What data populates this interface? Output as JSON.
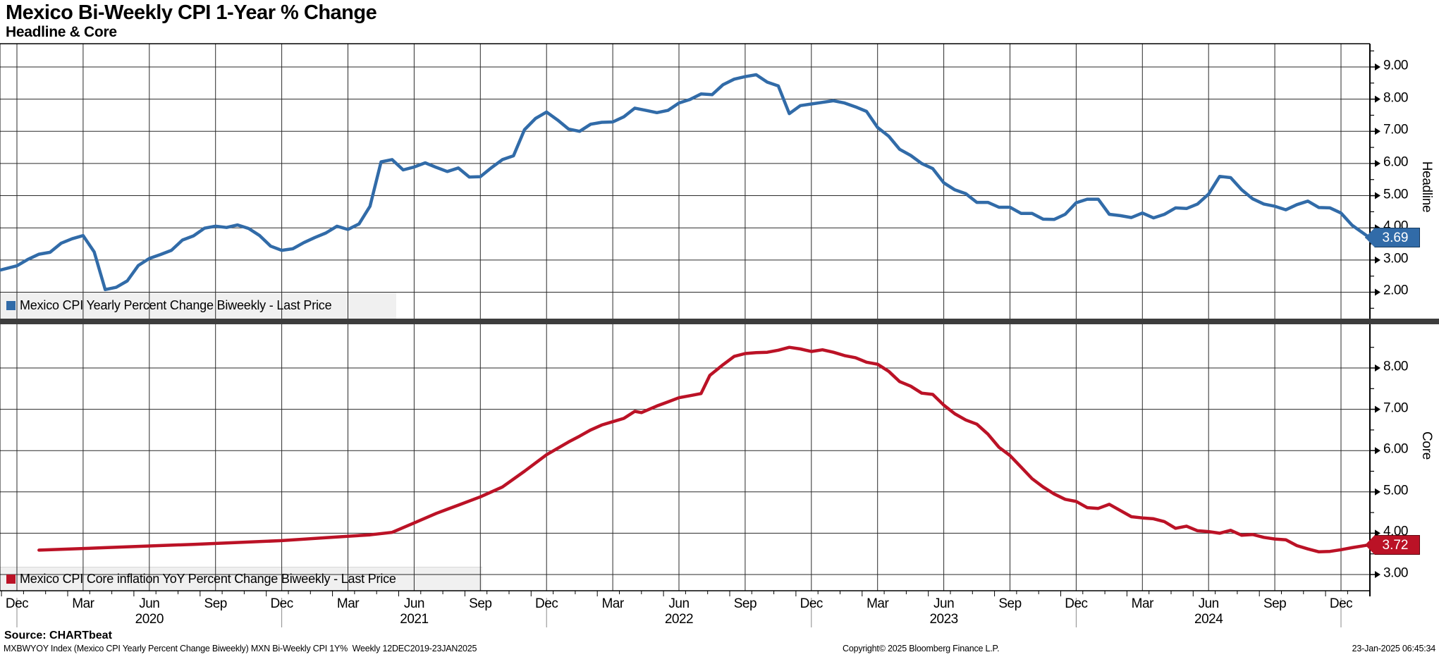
{
  "header": {
    "title": "Mexico Bi-Weekly CPI 1-Year % Change",
    "subtitle": "Headline & Core"
  },
  "colors": {
    "headline_blue": "#316ba8",
    "headline_badge_border": "#16395c",
    "core_red": "#bb1226",
    "core_badge_border": "#5f0911",
    "grid": "#2a2a2a",
    "frame": "#000000",
    "divider": "#3d3d3d",
    "legend_bg": "#f0f0f0",
    "year_separator": "#8a8a8a"
  },
  "panels": [
    {
      "name": "headline",
      "axis_title": "Headline",
      "legend_label": "Mexico CPI Yearly Percent Change Biweekly - Last Price",
      "last_price_badge": "3.69",
      "y_tick_labels": [
        "9.00",
        "8.00",
        "7.00",
        "6.00",
        "5.00",
        "4.00",
        "3.00",
        "2.00"
      ]
    },
    {
      "name": "core",
      "axis_title": "Core",
      "legend_label": "Mexico CPI Core inflation YoY Percent Change Biweekly - Last Price",
      "last_price_badge": "3.72",
      "y_tick_labels": [
        "8.00",
        "7.00",
        "6.00",
        "5.00",
        "4.00",
        "3.00"
      ]
    }
  ],
  "chart_data": [
    {
      "type": "line",
      "panel": "top",
      "title": "Headline",
      "legend": "Mexico CPI Yearly Percent Change Biweekly - Last Price",
      "ylabel": "Headline",
      "ylim": [
        1.1,
        9.7
      ],
      "yticks": [
        2,
        3,
        4,
        5,
        6,
        7,
        8,
        9
      ],
      "x_axis_note": "x = months since 12-Dec-2019; biweekly CPI YoY %, 12DEC2019-23JAN2025",
      "last_value": 3.69,
      "series": [
        {
          "name": "Mexico CPI Yearly Percent Change Biweekly",
          "color": "#316ba8",
          "points": [
            [
              -0.8,
              2.68
            ],
            [
              0,
              2.82
            ],
            [
              0.5,
              3.02
            ],
            [
              1,
              3.18
            ],
            [
              1.5,
              3.24
            ],
            [
              2,
              3.52
            ],
            [
              2.5,
              3.66
            ],
            [
              3,
              3.76
            ],
            [
              3.5,
              3.25
            ],
            [
              4,
              2.08
            ],
            [
              4.5,
              2.15
            ],
            [
              5,
              2.35
            ],
            [
              5.5,
              2.83
            ],
            [
              6,
              3.05
            ],
            [
              6.5,
              3.17
            ],
            [
              7,
              3.3
            ],
            [
              7.5,
              3.62
            ],
            [
              8,
              3.75
            ],
            [
              8.5,
              3.99
            ],
            [
              9,
              4.05
            ],
            [
              9.5,
              4.01
            ],
            [
              10,
              4.09
            ],
            [
              10.5,
              3.98
            ],
            [
              11,
              3.76
            ],
            [
              11.5,
              3.43
            ],
            [
              12,
              3.3
            ],
            [
              12.5,
              3.35
            ],
            [
              13,
              3.54
            ],
            [
              13.5,
              3.7
            ],
            [
              14,
              3.84
            ],
            [
              14.5,
              4.05
            ],
            [
              15,
              3.95
            ],
            [
              15.5,
              4.12
            ],
            [
              16,
              4.67
            ],
            [
              16.5,
              6.05
            ],
            [
              17,
              6.12
            ],
            [
              17.5,
              5.8
            ],
            [
              18,
              5.89
            ],
            [
              18.5,
              6.02
            ],
            [
              19,
              5.88
            ],
            [
              19.5,
              5.75
            ],
            [
              20,
              5.86
            ],
            [
              20.5,
              5.58
            ],
            [
              21,
              5.59
            ],
            [
              21.5,
              5.87
            ],
            [
              22,
              6.12
            ],
            [
              22.5,
              6.24
            ],
            [
              23,
              7.05
            ],
            [
              23.5,
              7.4
            ],
            [
              24,
              7.6
            ],
            [
              24.5,
              7.35
            ],
            [
              25,
              7.07
            ],
            [
              25.5,
              7.0
            ],
            [
              26,
              7.22
            ],
            [
              26.5,
              7.28
            ],
            [
              27,
              7.29
            ],
            [
              27.5,
              7.45
            ],
            [
              28,
              7.72
            ],
            [
              28.5,
              7.65
            ],
            [
              29,
              7.58
            ],
            [
              29.5,
              7.65
            ],
            [
              30,
              7.88
            ],
            [
              30.5,
              7.99
            ],
            [
              31,
              8.16
            ],
            [
              31.5,
              8.14
            ],
            [
              32,
              8.45
            ],
            [
              32.5,
              8.62
            ],
            [
              33,
              8.7
            ],
            [
              33.5,
              8.76
            ],
            [
              34,
              8.53
            ],
            [
              34.5,
              8.41
            ],
            [
              35,
              7.55
            ],
            [
              35.5,
              7.8
            ],
            [
              36,
              7.85
            ],
            [
              36.5,
              7.9
            ],
            [
              37,
              7.95
            ],
            [
              37.5,
              7.88
            ],
            [
              38,
              7.76
            ],
            [
              38.5,
              7.62
            ],
            [
              39,
              7.12
            ],
            [
              39.5,
              6.85
            ],
            [
              40,
              6.44
            ],
            [
              40.5,
              6.25
            ],
            [
              41,
              6.0
            ],
            [
              41.5,
              5.84
            ],
            [
              42,
              5.4
            ],
            [
              42.5,
              5.18
            ],
            [
              43,
              5.06
            ],
            [
              43.5,
              4.79
            ],
            [
              44,
              4.79
            ],
            [
              44.5,
              4.64
            ],
            [
              45,
              4.64
            ],
            [
              45.5,
              4.45
            ],
            [
              46,
              4.45
            ],
            [
              46.5,
              4.27
            ],
            [
              47,
              4.26
            ],
            [
              47.5,
              4.42
            ],
            [
              48,
              4.78
            ],
            [
              48.5,
              4.89
            ],
            [
              49,
              4.89
            ],
            [
              49.5,
              4.42
            ],
            [
              50,
              4.38
            ],
            [
              50.5,
              4.32
            ],
            [
              51,
              4.46
            ],
            [
              51.5,
              4.31
            ],
            [
              52,
              4.42
            ],
            [
              52.5,
              4.62
            ],
            [
              53,
              4.6
            ],
            [
              53.5,
              4.74
            ],
            [
              54,
              5.05
            ],
            [
              54.5,
              5.6
            ],
            [
              55,
              5.56
            ],
            [
              55.5,
              5.18
            ],
            [
              56,
              4.9
            ],
            [
              56.5,
              4.74
            ],
            [
              57,
              4.67
            ],
            [
              57.5,
              4.56
            ],
            [
              58,
              4.72
            ],
            [
              58.5,
              4.83
            ],
            [
              59,
              4.63
            ],
            [
              59.5,
              4.62
            ],
            [
              60,
              4.46
            ],
            [
              60.5,
              4.08
            ],
            [
              61.3,
              3.69
            ]
          ]
        }
      ]
    },
    {
      "type": "line",
      "panel": "bottom",
      "title": "Core",
      "legend": "Mexico CPI Core inflation YoY Percent Change Biweekly - Last Price",
      "ylabel": "Core",
      "ylim": [
        2.6,
        9.05
      ],
      "yticks": [
        3,
        4,
        5,
        6,
        7,
        8
      ],
      "x_axis_note": "x = months since 12-Dec-2019; biweekly core CPI YoY %, 12DEC2019-23JAN2025",
      "last_value": 3.72,
      "series": [
        {
          "name": "Mexico CPI Core inflation YoY Percent Change Biweekly",
          "color": "#bb1226",
          "points": [
            [
              1,
              3.59
            ],
            [
              4,
              3.65
            ],
            [
              8,
              3.73
            ],
            [
              12,
              3.82
            ],
            [
              14,
              3.89
            ],
            [
              16,
              3.96
            ],
            [
              17,
              4.02
            ],
            [
              18,
              4.25
            ],
            [
              19,
              4.48
            ],
            [
              20,
              4.68
            ],
            [
              21,
              4.88
            ],
            [
              22,
              5.12
            ],
            [
              23,
              5.5
            ],
            [
              24,
              5.9
            ],
            [
              25,
              6.21
            ],
            [
              25.5,
              6.35
            ],
            [
              26,
              6.5
            ],
            [
              26.5,
              6.62
            ],
            [
              27,
              6.7
            ],
            [
              27.5,
              6.78
            ],
            [
              28,
              6.95
            ],
            [
              28.3,
              6.92
            ],
            [
              29,
              7.08
            ],
            [
              29.5,
              7.18
            ],
            [
              30,
              7.28
            ],
            [
              30.5,
              7.33
            ],
            [
              31,
              7.38
            ],
            [
              31.4,
              7.82
            ],
            [
              32,
              8.08
            ],
            [
              32.5,
              8.28
            ],
            [
              33,
              8.35
            ],
            [
              33.5,
              8.37
            ],
            [
              34,
              8.38
            ],
            [
              34.5,
              8.43
            ],
            [
              35,
              8.5
            ],
            [
              35.5,
              8.46
            ],
            [
              36,
              8.4
            ],
            [
              36.5,
              8.44
            ],
            [
              37,
              8.38
            ],
            [
              37.5,
              8.3
            ],
            [
              38,
              8.25
            ],
            [
              38.5,
              8.14
            ],
            [
              39,
              8.09
            ],
            [
              39.5,
              7.92
            ],
            [
              40,
              7.67
            ],
            [
              40.5,
              7.56
            ],
            [
              41,
              7.39
            ],
            [
              41.5,
              7.36
            ],
            [
              42,
              7.1
            ],
            [
              42.5,
              6.89
            ],
            [
              43,
              6.74
            ],
            [
              43.5,
              6.64
            ],
            [
              44,
              6.4
            ],
            [
              44.5,
              6.08
            ],
            [
              45,
              5.88
            ],
            [
              45.5,
              5.6
            ],
            [
              46,
              5.32
            ],
            [
              46.5,
              5.12
            ],
            [
              47,
              4.95
            ],
            [
              47.5,
              4.82
            ],
            [
              48,
              4.77
            ],
            [
              48.5,
              4.62
            ],
            [
              49,
              4.6
            ],
            [
              49.5,
              4.7
            ],
            [
              50,
              4.55
            ],
            [
              50.5,
              4.4
            ],
            [
              51,
              4.37
            ],
            [
              51.5,
              4.35
            ],
            [
              52,
              4.28
            ],
            [
              52.5,
              4.12
            ],
            [
              53,
              4.17
            ],
            [
              53.5,
              4.06
            ],
            [
              54,
              4.04
            ],
            [
              54.5,
              4.0
            ],
            [
              55,
              4.07
            ],
            [
              55.5,
              3.95
            ],
            [
              56,
              3.97
            ],
            [
              56.5,
              3.9
            ],
            [
              57,
              3.86
            ],
            [
              57.5,
              3.84
            ],
            [
              58,
              3.7
            ],
            [
              58.5,
              3.62
            ],
            [
              59,
              3.55
            ],
            [
              59.5,
              3.56
            ],
            [
              60,
              3.6
            ],
            [
              60.5,
              3.65
            ],
            [
              61.3,
              3.72
            ]
          ]
        }
      ]
    }
  ],
  "x_axis": {
    "month_labels": [
      "Dec",
      "Mar",
      "Jun",
      "Sep",
      "Dec",
      "Mar",
      "Jun",
      "Sep",
      "Dec",
      "Mar",
      "Jun",
      "Sep",
      "Dec",
      "Mar",
      "Jun",
      "Sep",
      "Dec",
      "Mar",
      "Jun",
      "Sep",
      "Dec"
    ],
    "month_step": 3,
    "year_labels": [
      {
        "label": "2020",
        "m": 6
      },
      {
        "label": "2021",
        "m": 18
      },
      {
        "label": "2022",
        "m": 30
      },
      {
        "label": "2023",
        "m": 42
      },
      {
        "label": "2024",
        "m": 54
      }
    ]
  },
  "footer": {
    "source": "Source: CHARTbeat",
    "fine_print": "MXBWYOY Index (Mexico CPI Yearly Percent Change Biweekly) MXN Bi-Weekly CPI 1Y%  Weekly 12DEC2019-23JAN2025",
    "copyright": "Copyright© 2025 Bloomberg Finance L.P.",
    "timestamp": "23-Jan-2025 06:45:34"
  }
}
